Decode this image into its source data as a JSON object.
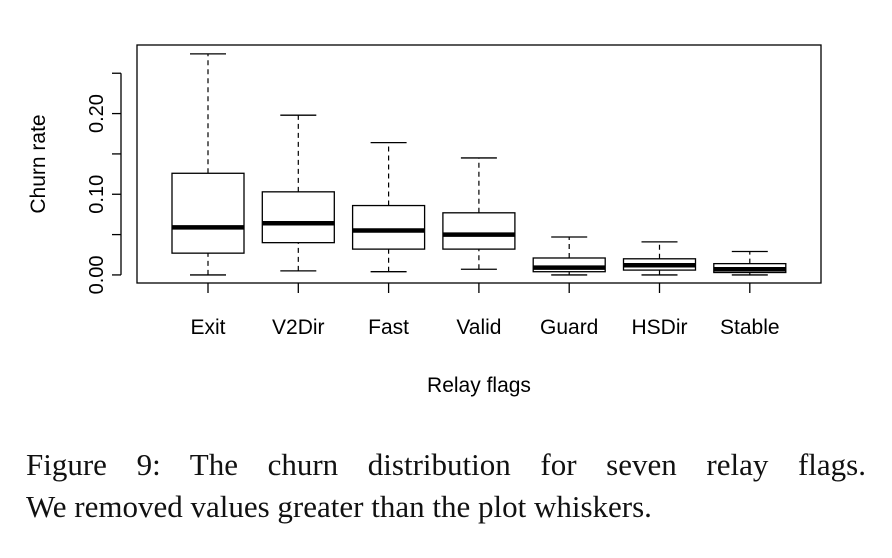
{
  "chart_data": {
    "type": "box",
    "xlabel": "Relay flags",
    "ylabel": "Churn rate",
    "ylim": [
      -0.01,
      0.285
    ],
    "yticks": [
      0.0,
      0.05,
      0.1,
      0.15,
      0.2,
      0.25
    ],
    "ytick_labels": [
      "0.00",
      "",
      "0.10",
      "",
      "0.20",
      ""
    ],
    "categories": [
      "Exit",
      "V2Dir",
      "Fast",
      "Valid",
      "Guard",
      "HSDir",
      "Stable"
    ],
    "boxes": [
      {
        "min": 0.0,
        "q1": 0.027,
        "median": 0.059,
        "q3": 0.126,
        "max": 0.274
      },
      {
        "min": 0.005,
        "q1": 0.04,
        "median": 0.064,
        "q3": 0.103,
        "max": 0.198
      },
      {
        "min": 0.004,
        "q1": 0.032,
        "median": 0.055,
        "q3": 0.086,
        "max": 0.164
      },
      {
        "min": 0.007,
        "q1": 0.032,
        "median": 0.05,
        "q3": 0.077,
        "max": 0.145
      },
      {
        "min": 0.0,
        "q1": 0.004,
        "median": 0.009,
        "q3": 0.021,
        "max": 0.047
      },
      {
        "min": 0.0,
        "q1": 0.006,
        "median": 0.012,
        "q3": 0.02,
        "max": 0.041
      },
      {
        "min": 0.0,
        "q1": 0.003,
        "median": 0.007,
        "q3": 0.014,
        "max": 0.029
      }
    ],
    "grid": false,
    "legend": "none"
  },
  "caption": {
    "line1": "Figure 9:  The churn distribution for seven relay flags.",
    "line2": "We removed values greater than the plot whiskers."
  }
}
